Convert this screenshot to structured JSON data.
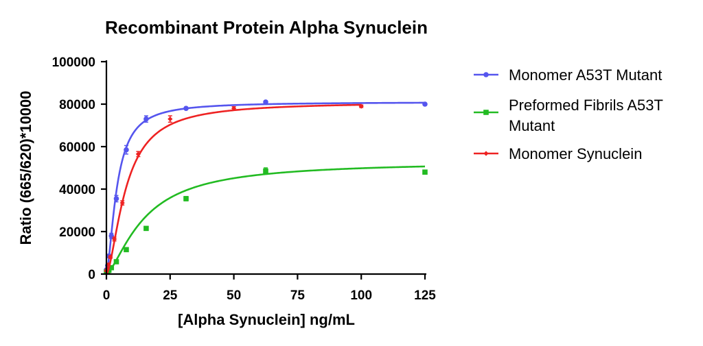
{
  "chart_data": {
    "type": "line",
    "title": "Recombinant Protein Alpha Synuclein",
    "xlabel": "[Alpha Synuclein] ng/mL",
    "ylabel": "Ratio (665/620)*10000",
    "xlim": [
      0,
      125
    ],
    "ylim": [
      0,
      100000
    ],
    "xticks": [
      "0",
      "25",
      "50",
      "75",
      "100",
      "125"
    ],
    "yticks": [
      "0",
      "20000",
      "40000",
      "60000",
      "80000",
      "100000"
    ],
    "grid": false,
    "legend_position": "right",
    "series": [
      {
        "name": "Monomer A53T Mutant",
        "color": "#5555ee",
        "marker": "circle",
        "fit": {
          "top": 81000,
          "ec50": 4.1,
          "hill": 1.6
        },
        "x": [
          0,
          0.49,
          0.98,
          1.95,
          3.9,
          7.8,
          15.6,
          31.25,
          62.5,
          125
        ],
        "y": [
          2000,
          4000,
          8500,
          18000,
          35500,
          58500,
          73000,
          78000,
          81000,
          80000
        ],
        "err": [
          400,
          500,
          800,
          1200,
          1500,
          2000,
          1500,
          600,
          600,
          500
        ]
      },
      {
        "name": "Preformed Fibrils A53T Mutant",
        "color": "#22bb22",
        "marker": "square",
        "fit": {
          "top": 53000,
          "ec50": 15,
          "hill": 1.45
        },
        "x": [
          0,
          0.49,
          0.98,
          1.95,
          3.9,
          7.8,
          15.6,
          31.25,
          62.5,
          125
        ],
        "y": [
          1000,
          1300,
          1800,
          3000,
          5800,
          11500,
          21500,
          35500,
          48500,
          48000
        ],
        "err": [
          200,
          200,
          300,
          300,
          500,
          700,
          800,
          1000,
          1500,
          700
        ]
      },
      {
        "name": "Monomer Synuclein",
        "color": "#ee2222",
        "marker": "diamond",
        "fit": {
          "top": 81000,
          "ec50": 7.7,
          "hill": 1.6
        },
        "x": [
          0,
          0.39,
          0.78,
          1.56,
          3.13,
          6.25,
          12.5,
          25,
          50,
          100
        ],
        "y": [
          1500,
          2500,
          4500,
          8000,
          16500,
          33500,
          56500,
          73000,
          78000,
          79000
        ],
        "err": [
          300,
          300,
          500,
          600,
          900,
          1000,
          1200,
          1500,
          800,
          600
        ]
      }
    ]
  }
}
